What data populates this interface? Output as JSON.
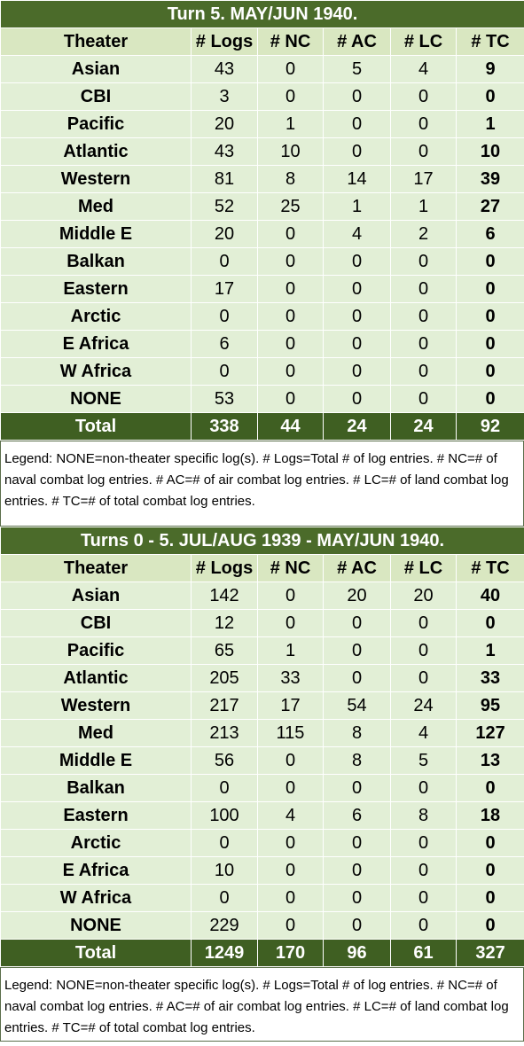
{
  "tables": [
    {
      "title": "Turn 5.  MAY/JUN 1940.",
      "headers": [
        "Theater",
        "# Logs",
        "# NC",
        "# AC",
        "# LC",
        "# TC"
      ],
      "rows": [
        [
          "Asian",
          "43",
          "0",
          "5",
          "4",
          "9"
        ],
        [
          "CBI",
          "3",
          "0",
          "0",
          "0",
          "0"
        ],
        [
          "Pacific",
          "20",
          "1",
          "0",
          "0",
          "1"
        ],
        [
          "Atlantic",
          "43",
          "10",
          "0",
          "0",
          "10"
        ],
        [
          "Western",
          "81",
          "8",
          "14",
          "17",
          "39"
        ],
        [
          "Med",
          "52",
          "25",
          "1",
          "1",
          "27"
        ],
        [
          "Middle E",
          "20",
          "0",
          "4",
          "2",
          "6"
        ],
        [
          "Balkan",
          "0",
          "0",
          "0",
          "0",
          "0"
        ],
        [
          "Eastern",
          "17",
          "0",
          "0",
          "0",
          "0"
        ],
        [
          "Arctic",
          "0",
          "0",
          "0",
          "0",
          "0"
        ],
        [
          "E Africa",
          "6",
          "0",
          "0",
          "0",
          "0"
        ],
        [
          "W Africa",
          "0",
          "0",
          "0",
          "0",
          "0"
        ],
        [
          "NONE",
          "53",
          "0",
          "0",
          "0",
          "0"
        ]
      ],
      "total": [
        "Total",
        "338",
        "44",
        "24",
        "24",
        "92"
      ],
      "legend": "Legend:  NONE=non-theater specific log(s).  # Logs=Total # of log entries.  # NC=# of naval combat log entries.  # AC=# of air combat log entries.  # LC=# of land combat log entries.  # TC=# of total combat log entries."
    },
    {
      "title": "Turns 0 - 5.  JUL/AUG 1939 - MAY/JUN 1940.",
      "headers": [
        "Theater",
        "# Logs",
        "# NC",
        "# AC",
        "# LC",
        "# TC"
      ],
      "rows": [
        [
          "Asian",
          "142",
          "0",
          "20",
          "20",
          "40"
        ],
        [
          "CBI",
          "12",
          "0",
          "0",
          "0",
          "0"
        ],
        [
          "Pacific",
          "65",
          "1",
          "0",
          "0",
          "1"
        ],
        [
          "Atlantic",
          "205",
          "33",
          "0",
          "0",
          "33"
        ],
        [
          "Western",
          "217",
          "17",
          "54",
          "24",
          "95"
        ],
        [
          "Med",
          "213",
          "115",
          "8",
          "4",
          "127"
        ],
        [
          "Middle E",
          "56",
          "0",
          "8",
          "5",
          "13"
        ],
        [
          "Balkan",
          "0",
          "0",
          "0",
          "0",
          "0"
        ],
        [
          "Eastern",
          "100",
          "4",
          "6",
          "8",
          "18"
        ],
        [
          "Arctic",
          "0",
          "0",
          "0",
          "0",
          "0"
        ],
        [
          "E Africa",
          "10",
          "0",
          "0",
          "0",
          "0"
        ],
        [
          "W Africa",
          "0",
          "0",
          "0",
          "0",
          "0"
        ],
        [
          "NONE",
          "229",
          "0",
          "0",
          "0",
          "0"
        ]
      ],
      "total": [
        "Total",
        "1249",
        "170",
        "96",
        "61",
        "327"
      ],
      "legend": "Legend:  NONE=non-theater specific log(s).  # Logs=Total # of log entries.  # NC=# of naval combat log entries.  # AC=# of air combat log entries.  # LC=# of land combat log entries.  # TC=# of total combat log entries."
    }
  ],
  "colors": {
    "title_bg": "#4b6b2a",
    "header_bg": "#d9e7c1",
    "row_bg": "#e2efd6",
    "total_bg": "#3f5f22"
  }
}
